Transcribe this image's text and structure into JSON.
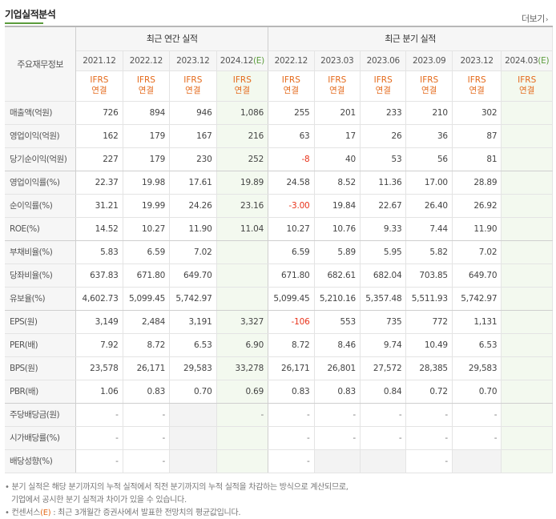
{
  "header": {
    "title": "기업실적분석",
    "more_label": "더보기",
    "more_arrow": "›"
  },
  "table": {
    "label_header": "주요재무정보",
    "annual_header": "최근 연간 실적",
    "quarter_header": "최근 분기 실적",
    "annual_dates": [
      "2021.12",
      "2022.12",
      "2023.12",
      "2024.12"
    ],
    "annual_estimate_suffix": "(E)",
    "quarter_dates": [
      "2022.12",
      "2023.03",
      "2023.06",
      "2023.09",
      "2023.12",
      "2024.03"
    ],
    "quarter_estimate_suffix": "(E)",
    "ifrs_top": "IFRS",
    "ifrs_bottom": "연결",
    "rows": [
      {
        "label": "매출액(억원)",
        "values": [
          "726",
          "894",
          "946",
          "1,086",
          "255",
          "201",
          "233",
          "210",
          "302",
          ""
        ]
      },
      {
        "label": "영업이익(억원)",
        "values": [
          "162",
          "179",
          "167",
          "216",
          "63",
          "17",
          "26",
          "36",
          "87",
          ""
        ]
      },
      {
        "label": "당기순이익(억원)",
        "values": [
          "227",
          "179",
          "230",
          "252",
          "-8",
          "40",
          "53",
          "56",
          "81",
          ""
        ]
      },
      {
        "label": "영업이익률(%)",
        "values": [
          "22.37",
          "19.98",
          "17.61",
          "19.89",
          "24.58",
          "8.52",
          "11.36",
          "17.00",
          "28.89",
          ""
        ]
      },
      {
        "label": "순이익률(%)",
        "values": [
          "31.21",
          "19.99",
          "24.26",
          "23.16",
          "-3.00",
          "19.84",
          "22.67",
          "26.40",
          "26.92",
          ""
        ]
      },
      {
        "label": "ROE(%)",
        "values": [
          "14.52",
          "10.27",
          "11.90",
          "11.04",
          "10.27",
          "10.76",
          "9.33",
          "7.44",
          "11.90",
          ""
        ]
      },
      {
        "label": "부채비율(%)",
        "values": [
          "5.83",
          "6.59",
          "7.02",
          "",
          "6.59",
          "5.89",
          "5.95",
          "5.82",
          "7.02",
          ""
        ]
      },
      {
        "label": "당좌비율(%)",
        "values": [
          "637.83",
          "671.80",
          "649.70",
          "",
          "671.80",
          "682.61",
          "682.04",
          "703.85",
          "649.70",
          ""
        ]
      },
      {
        "label": "유보율(%)",
        "values": [
          "4,602.73",
          "5,099.45",
          "5,742.97",
          "",
          "5,099.45",
          "5,210.16",
          "5,357.48",
          "5,511.93",
          "5,742.97",
          ""
        ]
      },
      {
        "label": "EPS(원)",
        "values": [
          "3,149",
          "2,484",
          "3,191",
          "3,327",
          "-106",
          "553",
          "735",
          "772",
          "1,131",
          ""
        ]
      },
      {
        "label": "PER(배)",
        "values": [
          "7.92",
          "8.72",
          "6.53",
          "6.90",
          "8.72",
          "8.46",
          "9.74",
          "10.49",
          "6.53",
          ""
        ]
      },
      {
        "label": "BPS(원)",
        "values": [
          "23,578",
          "26,171",
          "29,583",
          "33,278",
          "26,171",
          "26,801",
          "27,572",
          "28,385",
          "29,583",
          ""
        ]
      },
      {
        "label": "PBR(배)",
        "values": [
          "1.06",
          "0.83",
          "0.70",
          "0.69",
          "0.83",
          "0.83",
          "0.84",
          "0.72",
          "0.70",
          ""
        ]
      },
      {
        "label": "주당배당금(원)",
        "values": [
          "-",
          "-",
          "",
          "-",
          "-",
          "-",
          "-",
          "-",
          "-",
          ""
        ]
      },
      {
        "label": "시가배당률(%)",
        "values": [
          "-",
          "-",
          "",
          "",
          "-",
          "-",
          "-",
          "-",
          "-",
          ""
        ]
      },
      {
        "label": "배당성향(%)",
        "values": [
          "-",
          "-",
          "",
          "",
          "-",
          "",
          "",
          "-",
          "",
          ""
        ]
      }
    ]
  },
  "notes": {
    "line1": "분기 실적은 해당 분기까지의 누적 실적에서 직전 분기까지의 누적 실적을 차감하는 방식으로 계산되므로,",
    "line2": "기업에서 공시한 분기 실적과 차이가 있을 수 있습니다.",
    "line3_prefix": "컨센서스",
    "line3_est": "(E)",
    "line3_suffix": ": 최근 3개월간 증권사에서 발표한 전망치의 평균값입니다.",
    "bullet": "•"
  },
  "colors": {
    "accent_green": "#5b9c3c",
    "ifrs_orange": "#e46a1b",
    "negative_red": "#e8331b",
    "label_bg": "#f6f6f6",
    "estimate_bg": "#f3f9ef",
    "empty_bg": "#f3f3f3"
  }
}
